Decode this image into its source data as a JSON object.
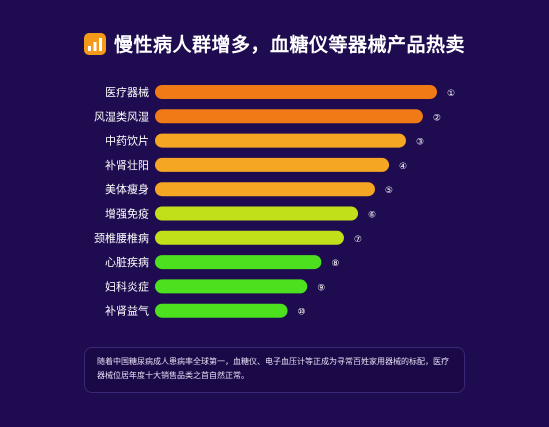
{
  "title": "慢性病人群增多，血糖仪等器械产品热卖",
  "icon": "bar-chart-icon",
  "note": "随着中国糖尿病成人患病率全球第一，血糖仪、电子血压计等正成为寻常百姓家用器械的标配，医疗器械位居年度十大销售品类之首自然正常。",
  "chart_data": {
    "type": "bar",
    "orientation": "horizontal",
    "categories": [
      "医疗器械",
      "风湿类风湿",
      "中药饮片",
      "补肾壮阳",
      "美体瘦身",
      "增强免疫",
      "颈椎腰椎病",
      "心脏疾病",
      "妇科炎症",
      "补肾益气"
    ],
    "ranks": [
      "①",
      "②",
      "③",
      "④",
      "⑤",
      "⑥",
      "⑦",
      "⑧",
      "⑨",
      "⑩"
    ],
    "values": [
      10,
      9.5,
      8.9,
      8.3,
      7.8,
      7.2,
      6.7,
      5.9,
      5.4,
      4.7
    ],
    "colors": [
      "#f07a16",
      "#f07a16",
      "#f5a623",
      "#f5a623",
      "#f5a623",
      "#c2e019",
      "#c2e019",
      "#4ce01f",
      "#4ce01f",
      "#4ce01f"
    ],
    "value_note": "relative bar lengths (no axis printed)",
    "grid": false
  }
}
